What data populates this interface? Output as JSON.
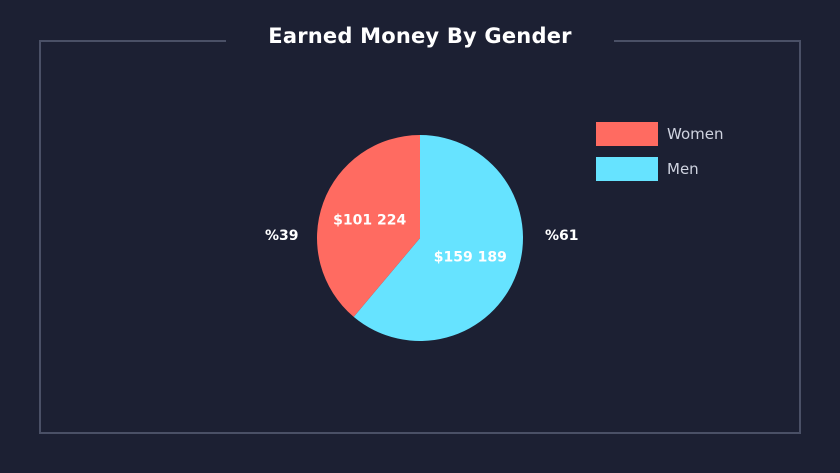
{
  "chart_data": {
    "type": "pie",
    "title": "Earned Money By Gender",
    "slices": [
      {
        "name": "Women",
        "value": 101224,
        "value_label": "$101 224",
        "percent_label": "%39",
        "color": "#ff6b61"
      },
      {
        "name": "Men",
        "value": 159189,
        "value_label": "$159 189",
        "percent_label": "%61",
        "color": "#66e3ff"
      }
    ],
    "legend_position": "top-right"
  },
  "colors": {
    "background": "#1c2033",
    "frame": "#4a5066",
    "text": "#ffffff",
    "legend_text": "#cfd3e0"
  }
}
